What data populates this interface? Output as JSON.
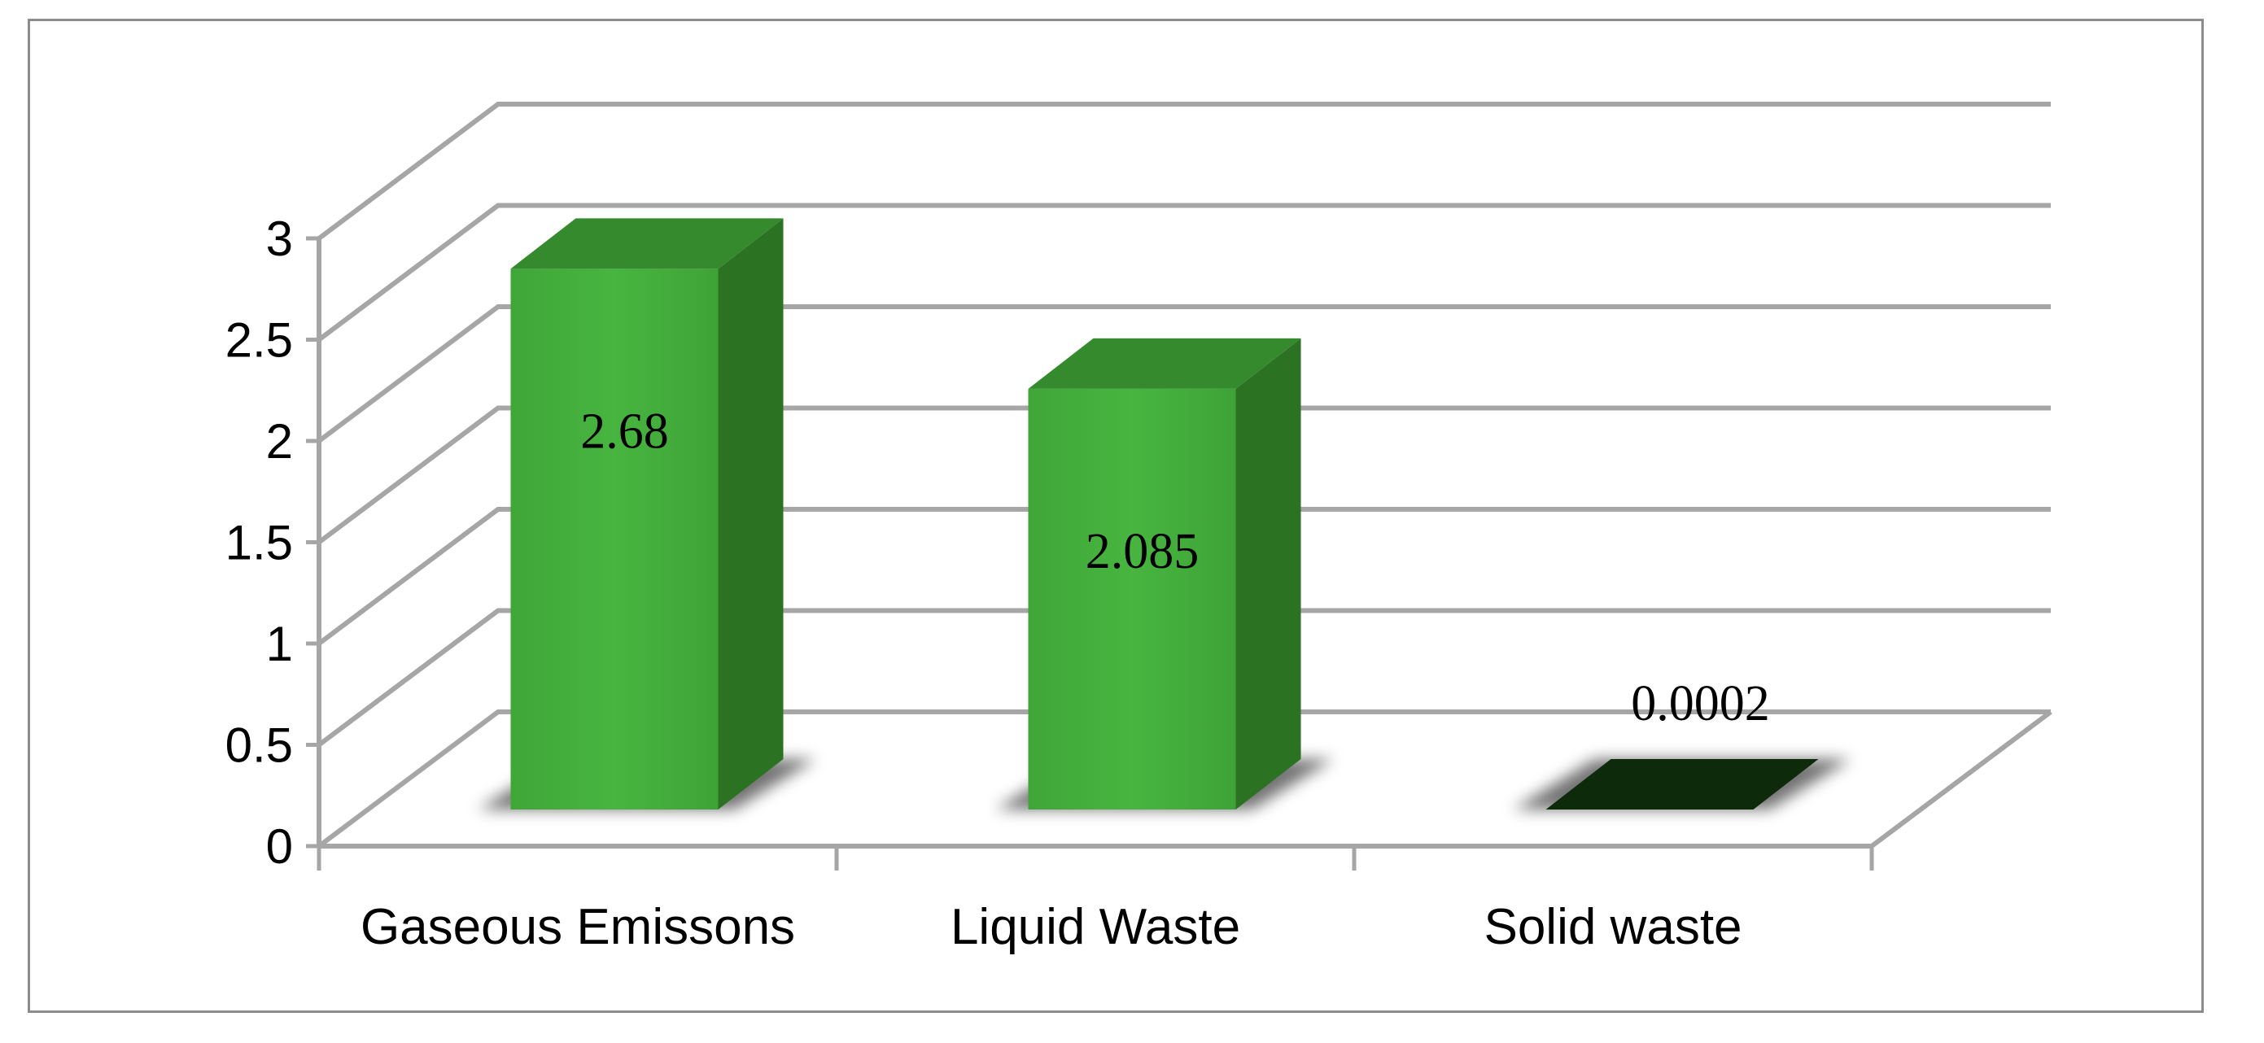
{
  "chart_data": {
    "type": "bar",
    "style": "3d-column",
    "categories": [
      "Gaseous Emissons",
      "Liquid Waste",
      "Solid waste"
    ],
    "values": [
      2.68,
      2.085,
      0.0002
    ],
    "data_labels": [
      "2.68",
      "2.085",
      "0.0002"
    ],
    "title": "",
    "xlabel": "",
    "ylabel": "",
    "ylim": [
      0,
      3
    ],
    "yticks": [
      0,
      0.5,
      1,
      1.5,
      2,
      2.5,
      3
    ],
    "ytick_labels": [
      "0",
      "0.5",
      "1",
      "1.5",
      "2",
      "2.5",
      "3"
    ],
    "grid": true,
    "legend": "none",
    "colors": {
      "bar_front": "#43ad3b",
      "bar_side": "#2b7223",
      "bar_top": "#358a2d",
      "near_zero_bar": "#0d2a0b",
      "gridline": "#a6a6a6"
    }
  }
}
